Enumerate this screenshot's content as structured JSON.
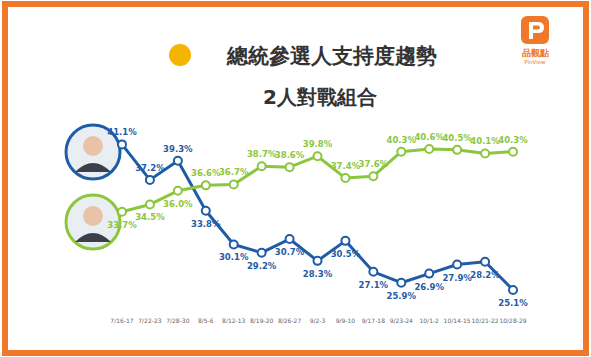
{
  "chart_data": {
    "type": "line",
    "title": "總統參選人支持度趨勢",
    "subtitle": "2人對戰組合",
    "annotations": [
      "品觀點",
      "PinView"
    ],
    "categories": [
      "7/16-17",
      "7/22-23",
      "7/28-30",
      "8/5-6",
      "8/12-13",
      "8/19-20",
      "8/26-27",
      "9/2-3",
      "9/9-10",
      "9/17-18",
      "9/23-24",
      "10/1-2",
      "10/14-15",
      "10/21-22",
      "10/28-29"
    ],
    "series": [
      {
        "color": "#1f5ca6",
        "marker": "circle",
        "values": [
          41.1,
          37.2,
          39.3,
          33.8,
          30.1,
          29.2,
          30.7,
          28.3,
          30.5,
          27.1,
          25.9,
          26.9,
          27.9,
          28.2,
          25.1
        ],
        "value_labels": [
          "41.1%",
          "37.2%",
          "39.3%",
          "33.8%",
          "30.1%",
          "29.2%",
          "30.7%",
          "28.3%",
          "30.5%",
          "27.1%",
          "25.9%",
          "26.9%",
          "27.9%",
          "28.2%",
          "25.1%"
        ]
      },
      {
        "color": "#8cc63f",
        "marker": "circle",
        "values": [
          33.7,
          34.5,
          36.0,
          36.6,
          36.7,
          38.7,
          38.6,
          39.8,
          37.4,
          37.6,
          40.3,
          40.6,
          40.5,
          40.1,
          40.3
        ],
        "value_labels": [
          "33.7%",
          "34.5%",
          "36.0%",
          "36.6%",
          "36.7%",
          "38.7%",
          "38.6%",
          "39.8%",
          "37.4%",
          "37.6%",
          "40.3%",
          "40.6%",
          "40.5%",
          "40.1%",
          "40.3%"
        ]
      }
    ],
    "ylim": [
      24,
      44
    ],
    "grid": false,
    "data_labels": true,
    "tick_labels": "x"
  }
}
